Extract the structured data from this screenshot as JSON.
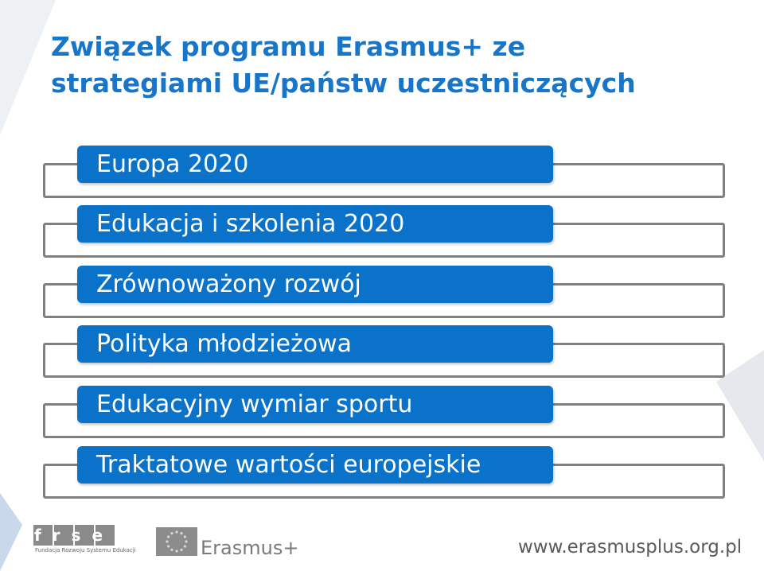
{
  "title": {
    "line1": "Związek programu Erasmus+ ze",
    "line2": "strategiami UE/państw uczestniczących"
  },
  "rows": [
    {
      "label": "Europa 2020"
    },
    {
      "label": "Edukacja i szkolenia 2020"
    },
    {
      "label": "Zrównoważony rozwój"
    },
    {
      "label": "Polityka młodzieżowa"
    },
    {
      "label": "Edukacyjny wymiar sportu"
    },
    {
      "label": "Traktatowe wartości europejskie"
    }
  ],
  "footer": {
    "frse_logo_text": "frse",
    "frse_caption": "Fundacja Rozwoju Systemu Edukacji",
    "erasmus_logo_text": "Erasmus+",
    "url": "www.erasmusplus.org.pl"
  },
  "colors": {
    "title": "#1776c9",
    "row_fill": "#0b72c9",
    "row_outline": "#808080"
  }
}
